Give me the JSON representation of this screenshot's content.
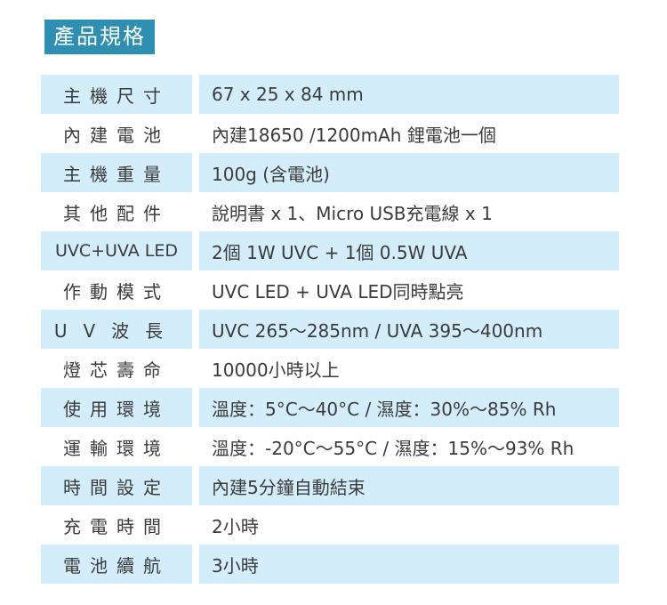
{
  "title": "產品規格",
  "specs": [
    {
      "label": "主機尺寸",
      "value": "67 x 25 x 84 mm"
    },
    {
      "label": "內建電池",
      "value": "內建18650 /1200mAh 鋰電池一個"
    },
    {
      "label": "主機重量",
      "value": "100g (含電池)"
    },
    {
      "label": "其他配件",
      "value": "說明書 x 1、Micro USB充電線 x 1"
    },
    {
      "label": "UVC+UVA LED",
      "value": "2個 1W UVC + 1個 0.5W UVA"
    },
    {
      "label": "作動模式",
      "value": "UVC LED + UVA LED同時點亮"
    },
    {
      "label": "UV波長",
      "value": "UVC 265～285nm / UVA 395～400nm"
    },
    {
      "label": "燈芯壽命",
      "value": "10000小時以上"
    },
    {
      "label": "使用環境",
      "value": "溫度：5°C～40°C / 濕度：30%～85% Rh"
    },
    {
      "label": "運輸環境",
      "value": "溫度：-20°C～55°C / 濕度：15%～93% Rh"
    },
    {
      "label": "時間設定",
      "value": "內建5分鐘自動結束"
    },
    {
      "label": "充電時間",
      "value": "2小時"
    },
    {
      "label": "電池續航",
      "value": "3小時"
    }
  ]
}
